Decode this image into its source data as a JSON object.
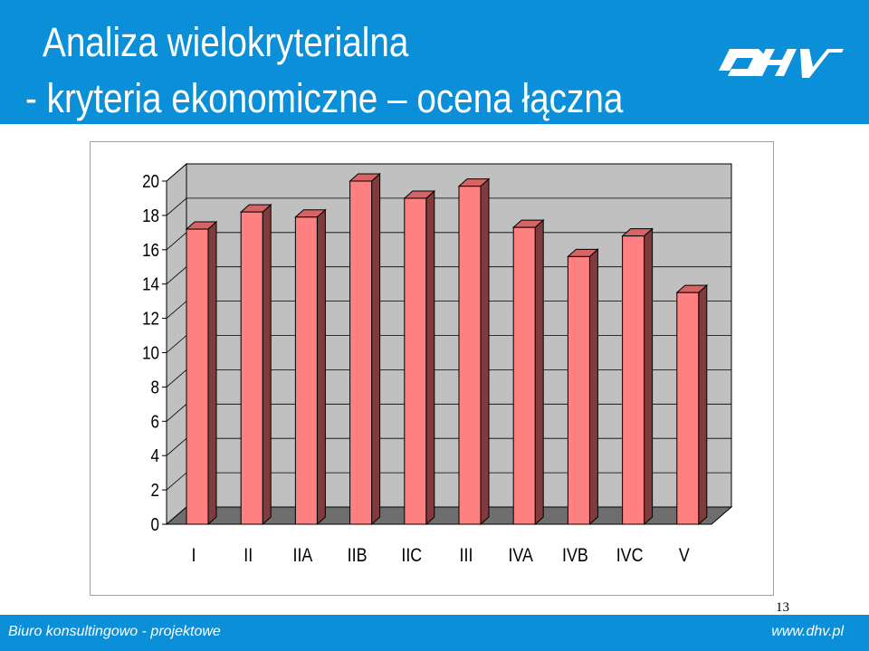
{
  "slide": {
    "title_line1": "Analiza wielokryterialna",
    "title_line2": "- kryteria ekonomiczne – ocena łączna",
    "logo_icon": "dhv-logo-icon",
    "page_number": "13",
    "footer_left": "Biuro konsultingowo - projektowe",
    "footer_right": "www.dhv.pl"
  },
  "colors": {
    "header_bg": "#0a8fd8",
    "bar_front": "#ff8080",
    "bar_side": "#803c3c",
    "bar_top": "#d66464",
    "plot_back": "#c0c0c0",
    "plot_floor": "#6e6e6e"
  },
  "chart_data": {
    "type": "bar",
    "categories": [
      "I",
      "II",
      "IIA",
      "IIB",
      "IIC",
      "III",
      "IVA",
      "IVB",
      "IVC",
      "V"
    ],
    "values": [
      17.2,
      18.2,
      17.9,
      20.0,
      19.0,
      19.7,
      17.3,
      15.6,
      16.8,
      13.5
    ],
    "yticks": [
      "0",
      "2",
      "4",
      "6",
      "8",
      "10",
      "12",
      "14",
      "16",
      "18",
      "20"
    ],
    "ylim": [
      0,
      20
    ],
    "grid": true,
    "three_d": true,
    "legend": "none"
  }
}
